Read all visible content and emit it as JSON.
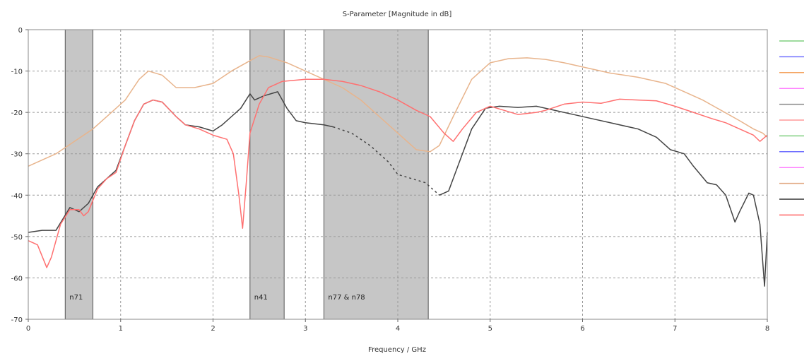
{
  "chart_data": {
    "type": "line",
    "title": "S-Parameter [Magnitude in dB]",
    "xlabel": "Frequency / GHz",
    "ylabel": "",
    "xlim": [
      0,
      8
    ],
    "ylim": [
      -70,
      0
    ],
    "x_ticks": [
      0,
      1,
      2,
      3,
      4,
      5,
      6,
      7,
      8
    ],
    "y_ticks": [
      0,
      -10,
      -20,
      -30,
      -40,
      -50,
      -60,
      -70
    ],
    "grid": true,
    "legend": "right",
    "bands": [
      {
        "label": "n71",
        "x0": 0.4,
        "x1": 0.7
      },
      {
        "label": "n41",
        "x0": 2.4,
        "x1": 2.77
      },
      {
        "label": "n77 & n78",
        "x0": 3.2,
        "x1": 4.33
      }
    ],
    "legend_swatches": [
      "#7fcf7f",
      "#6f6fff",
      "#f4a460",
      "#ff80ff",
      "#888888",
      "#ff9999",
      "#7fcf7f",
      "#6f6fff",
      "#ff80ff",
      "#e0a880",
      "#333333",
      "#ff6666"
    ],
    "series": [
      {
        "color": "#e8b48c",
        "dashed_x0": null,
        "points": [
          [
            0,
            -33
          ],
          [
            0.3,
            -30
          ],
          [
            0.5,
            -27
          ],
          [
            0.7,
            -24
          ],
          [
            0.9,
            -20
          ],
          [
            1.05,
            -17
          ],
          [
            1.2,
            -12
          ],
          [
            1.3,
            -10
          ],
          [
            1.45,
            -11
          ],
          [
            1.6,
            -14
          ],
          [
            1.8,
            -14
          ],
          [
            2.0,
            -13
          ],
          [
            2.2,
            -10
          ],
          [
            2.4,
            -7.5
          ],
          [
            2.5,
            -6.3
          ],
          [
            2.6,
            -6.6
          ],
          [
            2.8,
            -8
          ],
          [
            3.0,
            -10
          ],
          [
            3.2,
            -12
          ],
          [
            3.4,
            -14
          ],
          [
            3.6,
            -17
          ],
          [
            3.8,
            -21
          ],
          [
            4.0,
            -25
          ],
          [
            4.2,
            -29
          ],
          [
            4.35,
            -29.5
          ],
          [
            4.45,
            -28
          ],
          [
            4.6,
            -21
          ],
          [
            4.8,
            -12
          ],
          [
            5.0,
            -8
          ],
          [
            5.2,
            -7
          ],
          [
            5.4,
            -6.8
          ],
          [
            5.6,
            -7.2
          ],
          [
            5.8,
            -8
          ],
          [
            6.0,
            -9
          ],
          [
            6.3,
            -10.5
          ],
          [
            6.6,
            -11.5
          ],
          [
            6.9,
            -13
          ],
          [
            7.1,
            -15
          ],
          [
            7.3,
            -17
          ],
          [
            7.5,
            -19.5
          ],
          [
            7.7,
            -22
          ],
          [
            7.85,
            -24
          ],
          [
            7.95,
            -25
          ],
          [
            8.0,
            -26
          ]
        ]
      },
      {
        "color": "#444444",
        "dashed_x0": 3.3,
        "points": [
          [
            0,
            -49
          ],
          [
            0.15,
            -48.5
          ],
          [
            0.3,
            -48.5
          ],
          [
            0.45,
            -43
          ],
          [
            0.55,
            -44
          ],
          [
            0.65,
            -42
          ],
          [
            0.75,
            -38
          ],
          [
            0.85,
            -36
          ],
          [
            0.95,
            -34
          ],
          [
            1.05,
            -28
          ],
          [
            1.15,
            -22
          ],
          [
            1.25,
            -18
          ],
          [
            1.35,
            -17
          ],
          [
            1.45,
            -17.5
          ],
          [
            1.6,
            -21
          ],
          [
            1.7,
            -23
          ],
          [
            1.85,
            -23.5
          ],
          [
            2.0,
            -24.5
          ],
          [
            2.1,
            -23
          ],
          [
            2.2,
            -21
          ],
          [
            2.3,
            -19
          ],
          [
            2.4,
            -15.5
          ],
          [
            2.45,
            -17
          ],
          [
            2.55,
            -16
          ],
          [
            2.7,
            -15
          ],
          [
            2.8,
            -19
          ],
          [
            2.9,
            -22
          ],
          [
            3.0,
            -22.5
          ],
          [
            3.2,
            -23
          ],
          [
            3.3,
            -23.5
          ],
          [
            3.5,
            -25
          ],
          [
            3.7,
            -28
          ],
          [
            3.9,
            -32
          ],
          [
            4.0,
            -35
          ],
          [
            4.15,
            -36
          ],
          [
            4.3,
            -37
          ],
          [
            4.35,
            -38
          ],
          [
            4.45,
            -40
          ],
          [
            4.55,
            -39
          ],
          [
            4.65,
            -33
          ],
          [
            4.8,
            -24
          ],
          [
            4.95,
            -19
          ],
          [
            5.1,
            -18.5
          ],
          [
            5.3,
            -18.8
          ],
          [
            5.5,
            -18.5
          ],
          [
            5.7,
            -19.5
          ],
          [
            5.9,
            -20.5
          ],
          [
            6.1,
            -21.5
          ],
          [
            6.3,
            -22.5
          ],
          [
            6.6,
            -24
          ],
          [
            6.8,
            -26
          ],
          [
            6.95,
            -29
          ],
          [
            7.1,
            -30
          ],
          [
            7.2,
            -33
          ],
          [
            7.35,
            -37
          ],
          [
            7.45,
            -37.5
          ],
          [
            7.55,
            -40
          ],
          [
            7.65,
            -46.5
          ],
          [
            7.7,
            -44
          ],
          [
            7.8,
            -39.5
          ],
          [
            7.85,
            -40
          ],
          [
            7.92,
            -47
          ],
          [
            7.97,
            -62
          ],
          [
            8.0,
            -49
          ]
        ]
      },
      {
        "color": "#ff7070",
        "dashed_x0": null,
        "points": [
          [
            0,
            -51
          ],
          [
            0.1,
            -52
          ],
          [
            0.2,
            -57.5
          ],
          [
            0.25,
            -55
          ],
          [
            0.35,
            -47
          ],
          [
            0.45,
            -43.5
          ],
          [
            0.55,
            -43.5
          ],
          [
            0.6,
            -45
          ],
          [
            0.65,
            -44
          ],
          [
            0.75,
            -38.5
          ],
          [
            0.85,
            -36
          ],
          [
            0.95,
            -34.5
          ],
          [
            1.05,
            -28
          ],
          [
            1.15,
            -22
          ],
          [
            1.25,
            -18
          ],
          [
            1.35,
            -17
          ],
          [
            1.45,
            -17.5
          ],
          [
            1.6,
            -21
          ],
          [
            1.7,
            -23
          ],
          [
            1.85,
            -24
          ],
          [
            2.0,
            -25.5
          ],
          [
            2.15,
            -26.5
          ],
          [
            2.22,
            -30
          ],
          [
            2.28,
            -40
          ],
          [
            2.32,
            -48
          ],
          [
            2.36,
            -37
          ],
          [
            2.4,
            -25
          ],
          [
            2.5,
            -18
          ],
          [
            2.6,
            -14
          ],
          [
            2.75,
            -12.5
          ],
          [
            3.0,
            -12
          ],
          [
            3.2,
            -12
          ],
          [
            3.4,
            -12.5
          ],
          [
            3.6,
            -13.5
          ],
          [
            3.8,
            -15
          ],
          [
            4.0,
            -17
          ],
          [
            4.2,
            -19.5
          ],
          [
            4.35,
            -21
          ],
          [
            4.5,
            -25
          ],
          [
            4.6,
            -27
          ],
          [
            4.7,
            -24
          ],
          [
            4.85,
            -20
          ],
          [
            5.0,
            -18.5
          ],
          [
            5.15,
            -19.5
          ],
          [
            5.3,
            -20.5
          ],
          [
            5.5,
            -20
          ],
          [
            5.6,
            -19.5
          ],
          [
            5.8,
            -18
          ],
          [
            6.0,
            -17.5
          ],
          [
            6.2,
            -17.8
          ],
          [
            6.4,
            -16.8
          ],
          [
            6.6,
            -17
          ],
          [
            6.8,
            -17.2
          ],
          [
            7.0,
            -18.5
          ],
          [
            7.2,
            -20
          ],
          [
            7.4,
            -21.5
          ],
          [
            7.55,
            -22.5
          ],
          [
            7.7,
            -24
          ],
          [
            7.85,
            -25.5
          ],
          [
            7.92,
            -27
          ],
          [
            8.0,
            -25.5
          ]
        ]
      }
    ]
  }
}
